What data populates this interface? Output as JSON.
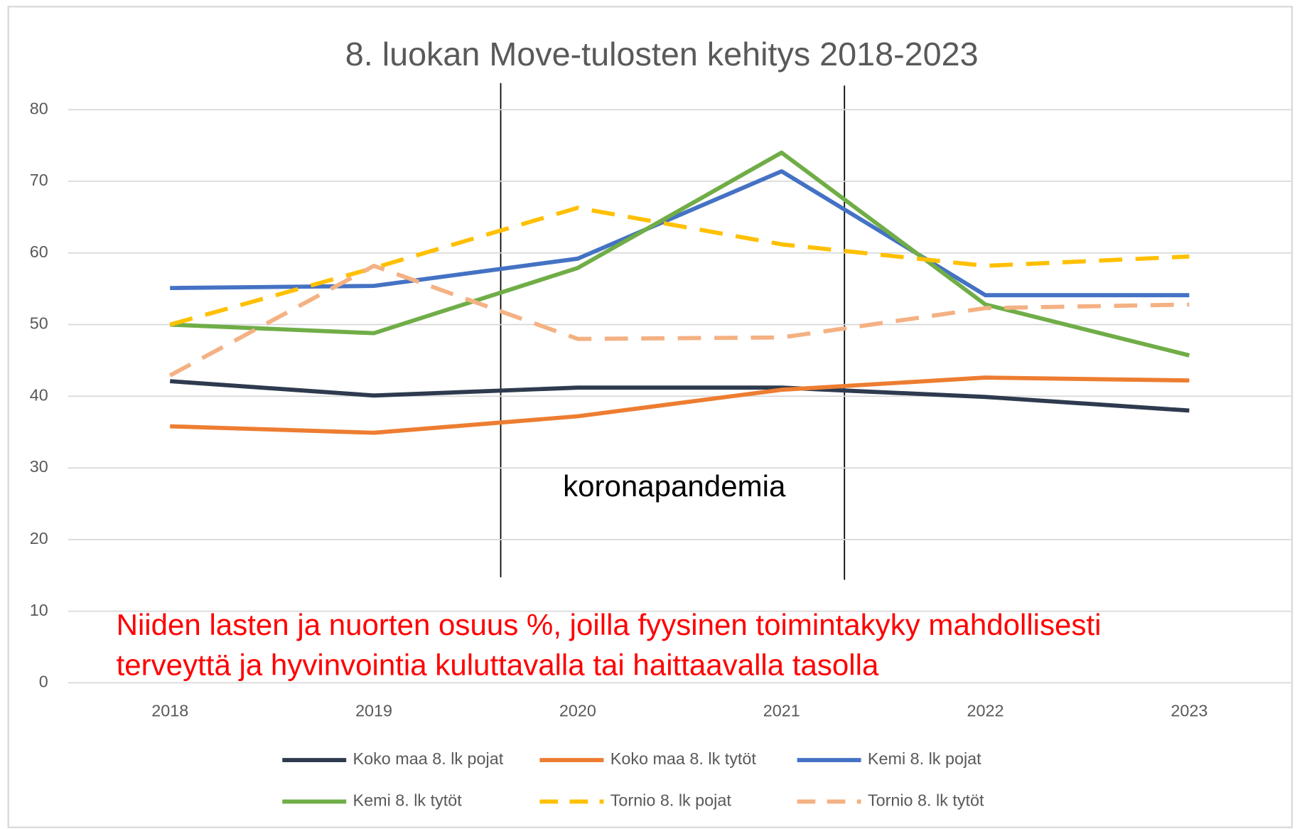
{
  "chart_data": {
    "type": "line",
    "title": "8. luokan Move-tulosten kehitys 2018-2023",
    "categories": [
      "2018",
      "2019",
      "2020",
      "2021",
      "2022",
      "2023"
    ],
    "series": [
      {
        "name": "Koko maa 8. lk pojat",
        "color": "#2e3a4e",
        "dash": false,
        "values": [
          42.1,
          40.1,
          41.2,
          41.2,
          39.9,
          38.0
        ]
      },
      {
        "name": "Koko maa 8. lk tytöt",
        "color": "#ed7d31",
        "dash": false,
        "values": [
          35.8,
          34.9,
          37.2,
          40.9,
          42.6,
          42.2
        ]
      },
      {
        "name": "Kemi 8. lk pojat",
        "color": "#4472c4",
        "dash": false,
        "values": [
          55.1,
          55.4,
          59.2,
          71.4,
          54.1,
          54.1
        ]
      },
      {
        "name": "Kemi 8. lk tytöt",
        "color": "#70ad47",
        "dash": false,
        "values": [
          50.0,
          48.8,
          57.9,
          74.0,
          52.8,
          45.7
        ]
      },
      {
        "name": "Tornio 8. lk pojat",
        "color": "#ffc000",
        "dash": true,
        "values": [
          50.0,
          57.9,
          66.3,
          61.2,
          58.2,
          59.5
        ]
      },
      {
        "name": "Tornio 8. lk tytöt",
        "color": "#f4b183",
        "dash": true,
        "values": [
          42.9,
          58.2,
          48.0,
          48.2,
          52.3,
          52.8
        ]
      }
    ],
    "ylim": [
      0,
      80
    ],
    "yticks": [
      0,
      10,
      20,
      30,
      40,
      50,
      60,
      70,
      80
    ],
    "grid": true,
    "annotation": "koronapandemia",
    "note": [
      "Niiden lasten ja nuorten osuus %, joilla fyysinen toimintakyky mahdollisesti",
      "terveyttä ja hyvinvointia kuluttavalla tai haittaavalla tasolla"
    ]
  }
}
